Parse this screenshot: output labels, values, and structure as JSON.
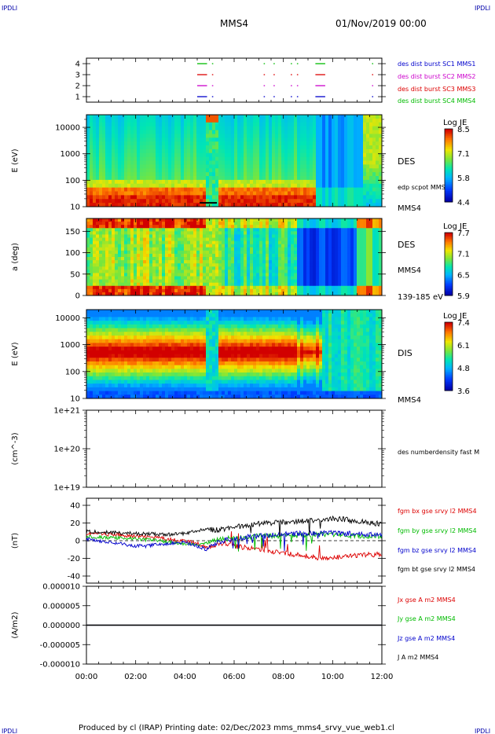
{
  "header": {
    "corner_left": "IPDLI",
    "corner_right": "IPDLI",
    "spacecraft": "MMS4",
    "datetime": "01/Nov/2019 00:00"
  },
  "footer": {
    "text": "Produced by cl (IRAP)   Printing date: 02/Dec/2023   mms_mms4_srvy_vue_web1.cl",
    "corner_left": "IPDLI",
    "corner_right": "IPDLI"
  },
  "colors": {
    "mms1": "#0000cc",
    "mms2": "#cc00cc",
    "mms3": "#dd0000",
    "mms4": "#00bb00",
    "bx": "#dd0000",
    "by": "#00bb00",
    "bz": "#0000cc",
    "bt": "#000000"
  },
  "chart_data": [
    {
      "type": "scatter",
      "panel": "burst",
      "ylim": [
        0.5,
        4.5
      ],
      "y_ticks": [
        "1",
        "2",
        "3",
        "4"
      ],
      "series": [
        {
          "name": "des dist burst SC1 MMS1",
          "level": 1,
          "color_key": "mms1"
        },
        {
          "name": "des dist burst SC2 MMS2",
          "level": 2,
          "color_key": "mms2"
        },
        {
          "name": "des dist burst SC3 MMS3",
          "level": 3,
          "color_key": "mms3"
        },
        {
          "name": "des dist burst SC4 MMS4",
          "level": 4,
          "color_key": "mms4"
        }
      ],
      "burst_intervals_hours": [
        [
          4.5,
          4.9
        ],
        [
          5.1,
          5.15
        ],
        [
          7.2,
          7.25
        ],
        [
          7.6,
          7.65
        ],
        [
          8.3,
          8.35
        ],
        [
          8.55,
          8.6
        ],
        [
          9.3,
          9.7
        ],
        [
          11.6,
          11.65
        ]
      ]
    },
    {
      "type": "heatmap",
      "panel": "des-energy",
      "ylabel": "E (eV)",
      "y_scale": "log",
      "ylim": [
        10,
        30000
      ],
      "y_ticks": [
        "10",
        "100",
        "1000",
        "10000"
      ],
      "right_labels": [
        "DES",
        "edp scpot MMS4",
        "MMS4"
      ],
      "colorbar": {
        "title": "Log JE",
        "ticks": [
          "8.5",
          "7.1",
          "5.8",
          "4.4"
        ]
      }
    },
    {
      "type": "heatmap",
      "panel": "des-pitch",
      "ylabel": "a (deg)",
      "ylim": [
        0,
        180
      ],
      "y_ticks": [
        "0",
        "50",
        "100",
        "150"
      ],
      "right_labels": [
        "DES",
        "MMS4",
        "139-185 eV"
      ],
      "colorbar": {
        "title": "Log JE",
        "ticks": [
          "7.7",
          "7.1",
          "6.5",
          "5.9"
        ]
      }
    },
    {
      "type": "heatmap",
      "panel": "dis-energy",
      "ylabel": "E (eV)",
      "y_scale": "log",
      "ylim": [
        10,
        20000
      ],
      "y_ticks": [
        "10",
        "100",
        "1000",
        "10000"
      ],
      "right_labels": [
        "DIS",
        "MMS4"
      ],
      "colorbar": {
        "title": "Log JE",
        "ticks": [
          "7.4",
          "6.1",
          "4.8",
          "3.6"
        ]
      }
    },
    {
      "type": "line",
      "panel": "density",
      "ylabel": "(cm^-3)",
      "y_scale": "log",
      "ylim": [
        1e+19,
        1e+21
      ],
      "y_ticks": [
        "1e+19",
        "1e+20",
        "1e+21"
      ],
      "series": [
        {
          "name": "des numberdensity fast M",
          "values": []
        }
      ]
    },
    {
      "type": "line",
      "panel": "fgm",
      "ylabel": "(nT)",
      "ylim": [
        -48,
        48
      ],
      "y_ticks": [
        "-40",
        "-20",
        "0",
        "20",
        "40"
      ],
      "x_hours": [
        0,
        0.5,
        1,
        1.5,
        2,
        2.5,
        3,
        3.5,
        4,
        4.5,
        4.9,
        5.2,
        5.5,
        6,
        6.5,
        7,
        7.5,
        8,
        8.5,
        9,
        9.5,
        10,
        10.5,
        11,
        11.5,
        12
      ],
      "series": [
        {
          "name": "fgm bx gse srvy l2 MMS4",
          "color_key": "bx",
          "values": [
            8,
            8,
            7,
            6,
            5,
            4,
            3,
            1,
            0,
            -3,
            -8,
            -5,
            -3,
            -6,
            -8,
            -10,
            -12,
            -14,
            -16,
            -18,
            -19,
            -20,
            -18,
            -17,
            -16,
            -15
          ]
        },
        {
          "name": "fgm by gse srvy l2 MMS4",
          "color_key": "by",
          "values": [
            5,
            4,
            3,
            3,
            2,
            1,
            0,
            -2,
            -4,
            -5,
            -3,
            0,
            2,
            3,
            4,
            5,
            5,
            6,
            6,
            7,
            7,
            7,
            6,
            6,
            5,
            5
          ]
        },
        {
          "name": "fgm bz gse srvy l2 MMS4",
          "color_key": "bz",
          "values": [
            2,
            0,
            -2,
            -4,
            -6,
            -6,
            -4,
            -3,
            -2,
            -6,
            -10,
            -4,
            0,
            2,
            4,
            5,
            6,
            7,
            8,
            8,
            8,
            9,
            8,
            8,
            7,
            7
          ]
        },
        {
          "name": "fgm bt gse srvy l2 MMS4",
          "color_key": "bt",
          "values": [
            10,
            10,
            9,
            9,
            8,
            8,
            7,
            7,
            8,
            11,
            14,
            12,
            13,
            15,
            17,
            19,
            20,
            21,
            22,
            23,
            24,
            25,
            24,
            22,
            20,
            19
          ]
        }
      ]
    },
    {
      "type": "line",
      "panel": "current",
      "ylabel": "(A/m2)",
      "ylim": [
        -1e-05,
        1e-05
      ],
      "y_ticks": [
        "-0.000010",
        "-0.000005",
        "0.000000",
        "0.000005",
        "0.000010"
      ],
      "series": [
        {
          "name": "Jx gse A m2 MMS4",
          "color_key": "bx",
          "values": [
            0
          ]
        },
        {
          "name": "Jy gse A m2 MMS4",
          "color_key": "by",
          "values": [
            0
          ]
        },
        {
          "name": "Jz gse A m2 MMS4",
          "color_key": "bz",
          "values": [
            0
          ]
        },
        {
          "name": "J A m2 MMS4",
          "color_key": "bt",
          "values": [
            0
          ]
        }
      ]
    }
  ],
  "x_axis": {
    "xlim": [
      0,
      12
    ],
    "ticks": [
      "00:00",
      "02:00",
      "04:00",
      "06:00",
      "08:00",
      "10:00",
      "12:00"
    ]
  }
}
